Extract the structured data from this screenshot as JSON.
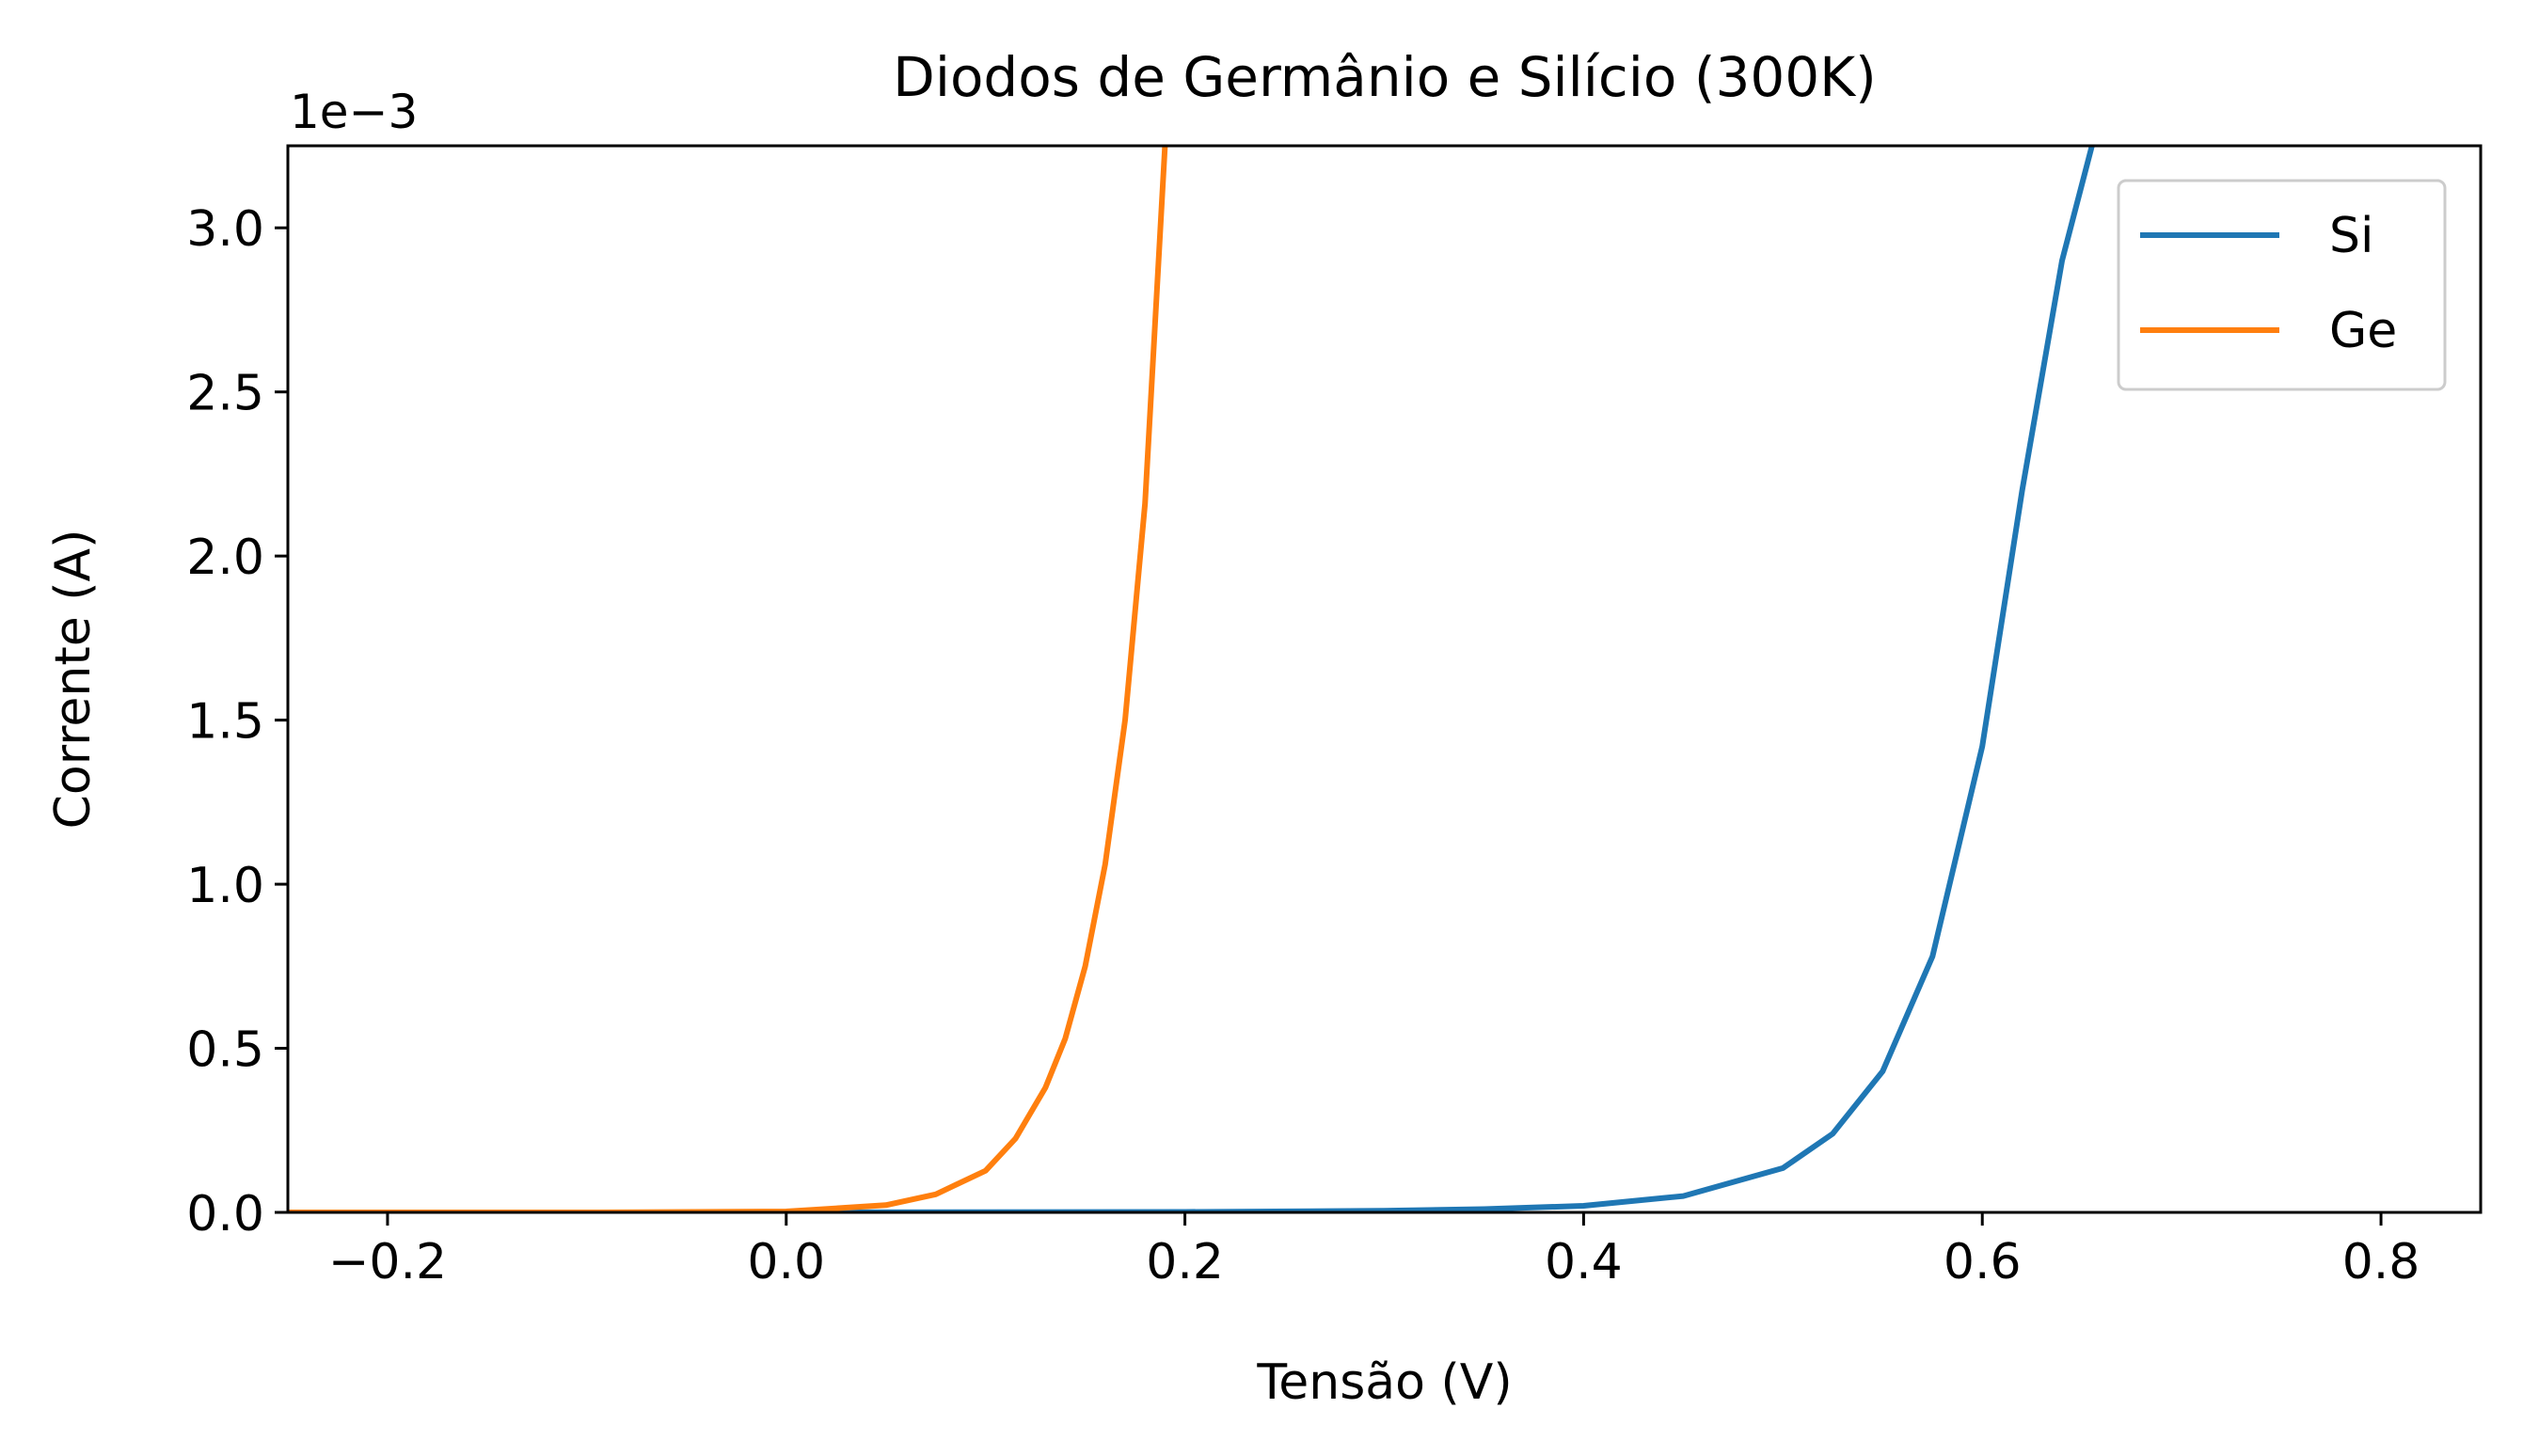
{
  "chart_data": {
    "type": "line",
    "title": "Diodos de Germânio e Silício (300K)",
    "xlabel": "Tensão (V)",
    "ylabel": "Corrente (A)",
    "y_offset_label": "1e−3",
    "xlim": [
      -0.25,
      0.85
    ],
    "ylim": [
      0,
      0.00325
    ],
    "x_ticks": [
      -0.2,
      0.0,
      0.2,
      0.4,
      0.6,
      0.8
    ],
    "x_tick_labels": [
      "−0.2",
      "0.0",
      "0.2",
      "0.4",
      "0.6",
      "0.8"
    ],
    "y_ticks": [
      0,
      0.0005,
      0.001,
      0.0015,
      0.002,
      0.0025,
      0.003
    ],
    "y_tick_labels": [
      "0.0",
      "0.5",
      "1.0",
      "1.5",
      "2.0",
      "2.5",
      "3.0"
    ],
    "grid": false,
    "legend_position": "top-right",
    "series": [
      {
        "name": "Si",
        "color": "#1f77b4",
        "x": [
          -0.25,
          0.0,
          0.2,
          0.3,
          0.35,
          0.4,
          0.45,
          0.5,
          0.525,
          0.55,
          0.575,
          0.6,
          0.62,
          0.64,
          0.655
        ],
        "y": [
          0,
          1e-07,
          1.5e-06,
          5e-06,
          1e-05,
          2e-05,
          5e-05,
          0.000135,
          0.00024,
          0.00043,
          0.00078,
          0.00142,
          0.0022,
          0.0029,
          0.00325
        ]
      },
      {
        "name": "Ge",
        "color": "#ff7f0e",
        "x": [
          -0.25,
          -0.1,
          0.0,
          0.05,
          0.075,
          0.1,
          0.115,
          0.13,
          0.14,
          0.15,
          0.16,
          0.17,
          0.18,
          0.19
        ],
        "y": [
          0,
          0,
          3e-06,
          2.2e-05,
          5.5e-05,
          0.000127,
          0.000225,
          0.00038,
          0.00053,
          0.00075,
          0.00106,
          0.0015,
          0.00216,
          0.00325
        ]
      }
    ]
  }
}
